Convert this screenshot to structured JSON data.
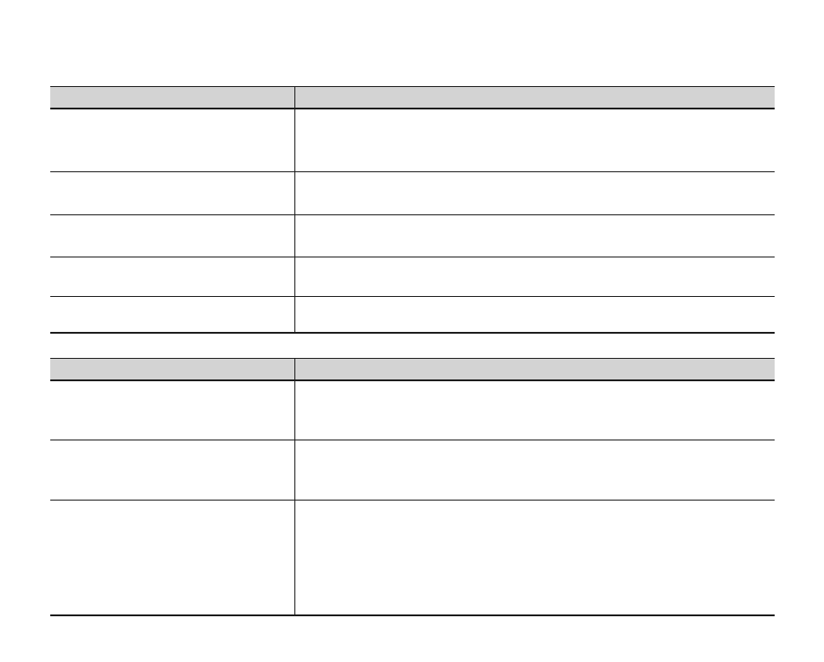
{
  "document": {
    "background_color": "#ffffff",
    "table_style": {
      "header_bg_color": "#d3d3d3",
      "border_color": "#1c1c1c"
    },
    "tables": [
      {
        "id": "upper-table",
        "columns": [
          {
            "header": ""
          },
          {
            "header": ""
          }
        ],
        "rows": [
          [
            "",
            ""
          ],
          [
            "",
            ""
          ],
          [
            "",
            ""
          ],
          [
            "",
            ""
          ],
          [
            "",
            ""
          ]
        ]
      },
      {
        "id": "lower-table",
        "columns": [
          {
            "header": ""
          },
          {
            "header": ""
          }
        ],
        "rows": [
          [
            "",
            ""
          ],
          [
            "",
            ""
          ],
          [
            "",
            ""
          ]
        ]
      }
    ]
  }
}
